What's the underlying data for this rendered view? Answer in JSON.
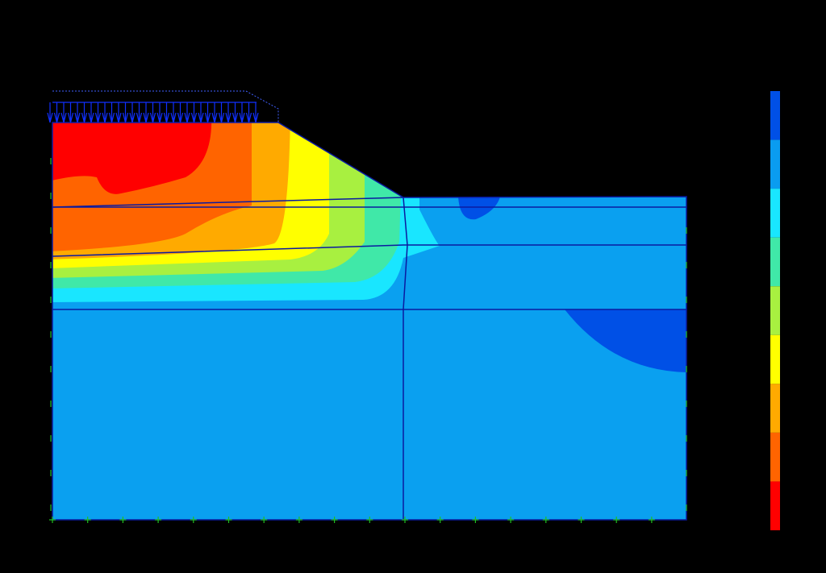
{
  "legend": {
    "colors": [
      "#0050e6",
      "#0a9cf0",
      "#19e6ff",
      "#40e8a8",
      "#a8f040",
      "#ffff00",
      "#ffaa00",
      "#ff6400",
      "#ff0000"
    ]
  }
}
